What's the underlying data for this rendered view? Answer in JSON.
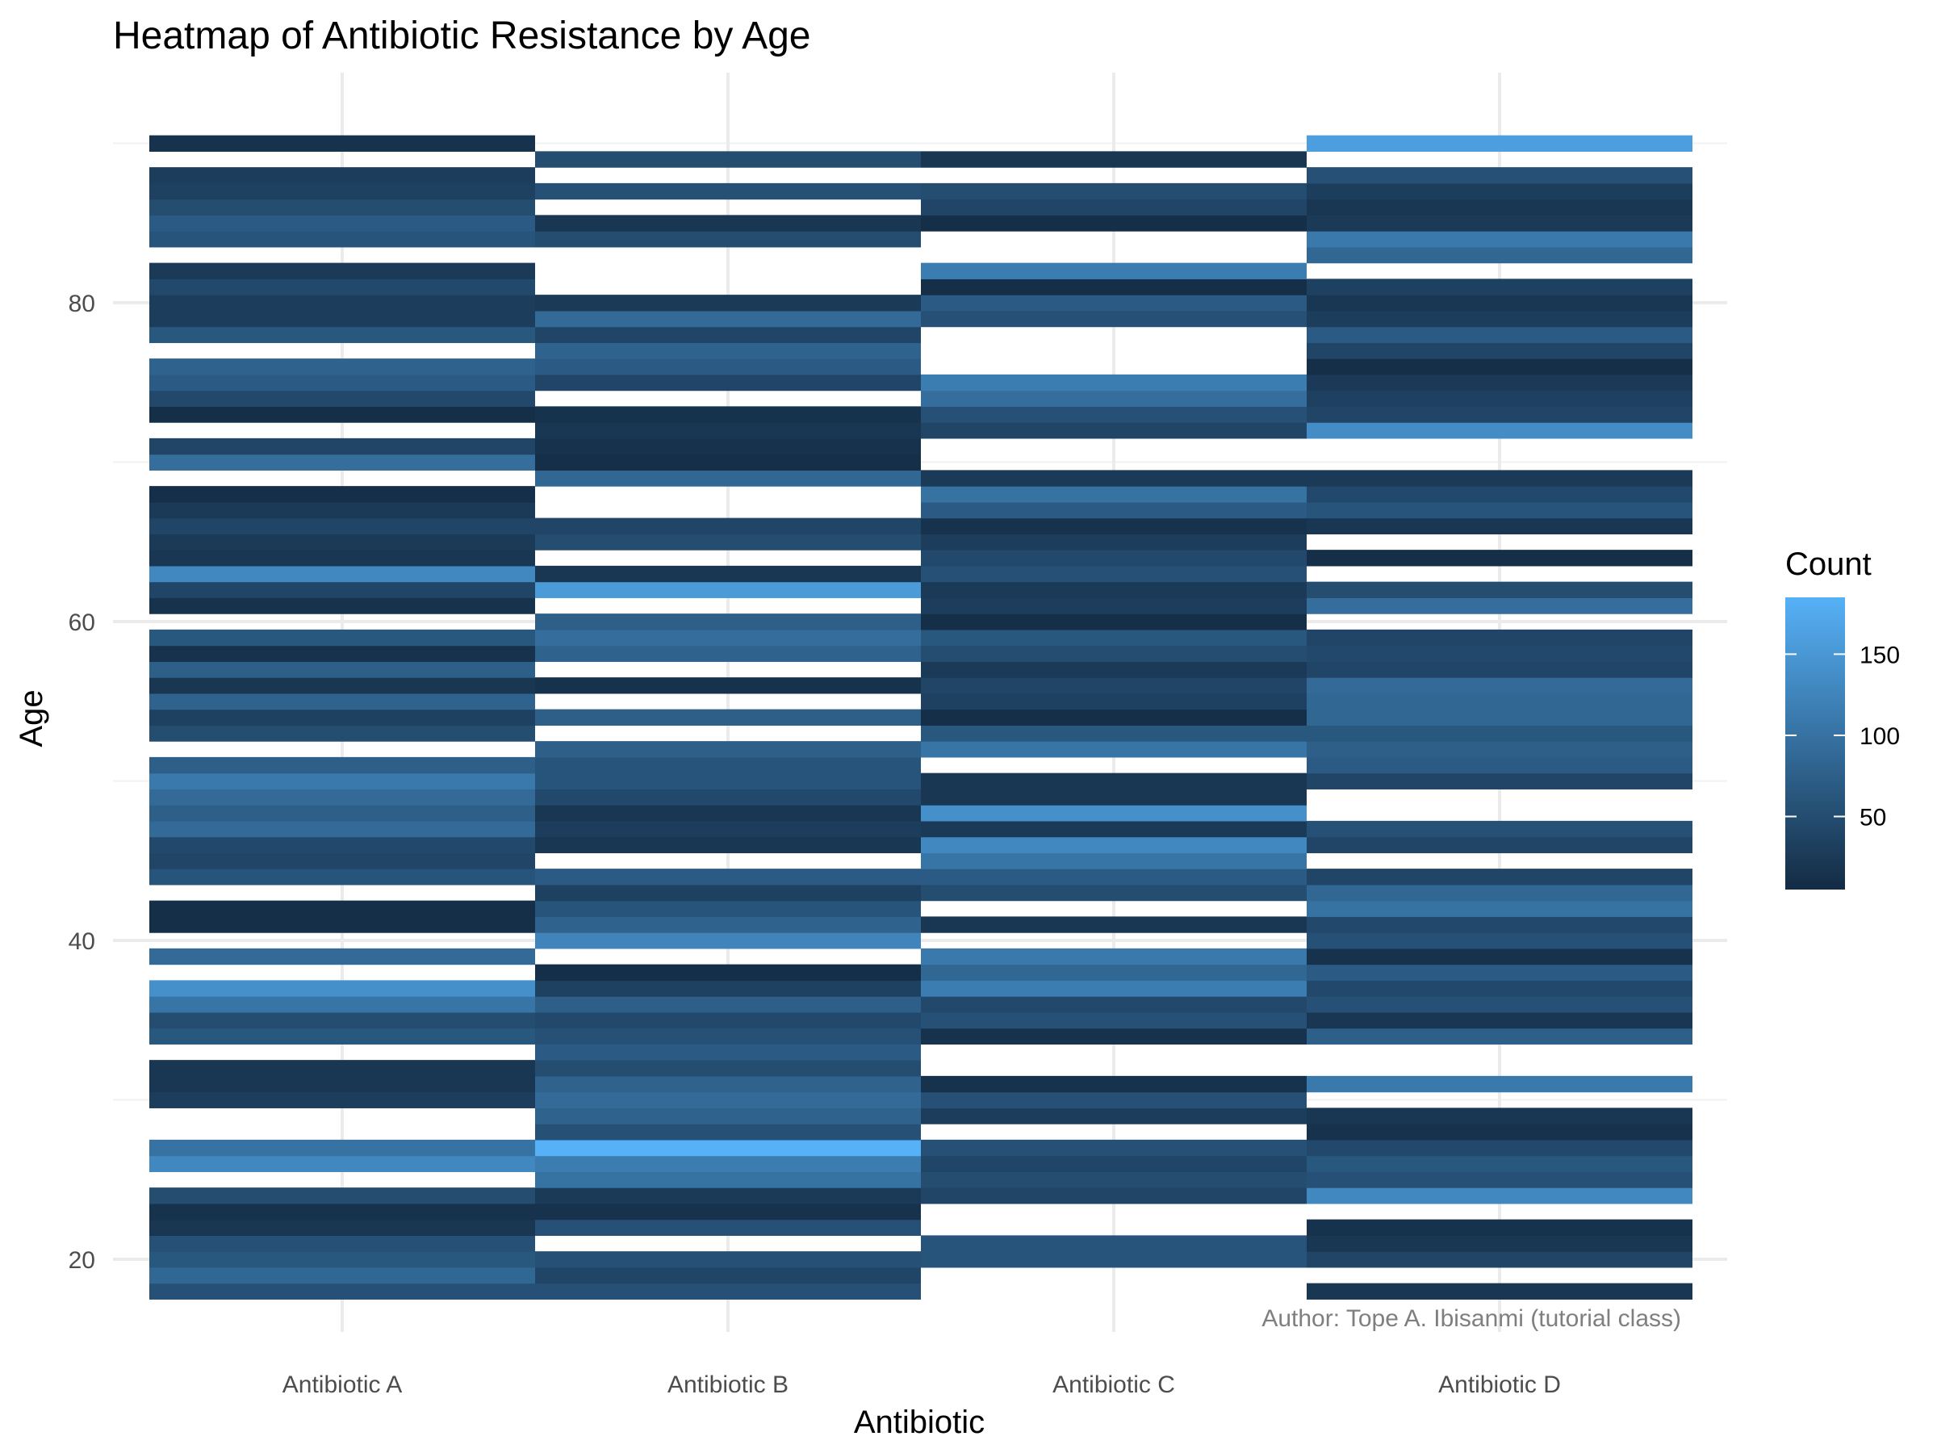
{
  "chart_data": {
    "type": "heatmap",
    "title": "Heatmap of Antibiotic Resistance by Age",
    "xlabel": "Antibiotic",
    "ylabel": "Age",
    "caption": "Author: Tope A. Ibisanmi (tutorial class)",
    "categories": [
      "Antibiotic A",
      "Antibiotic B",
      "Antibiotic C",
      "Antibiotic D"
    ],
    "ylim": [
      14,
      92
    ],
    "y_ticks": [
      20,
      40,
      60,
      80
    ],
    "grid": true,
    "legend": {
      "title": "Count",
      "position": "right",
      "min": 5,
      "max": 185,
      "ticks": [
        50,
        100,
        150
      ],
      "low_color": "#132B43",
      "high_color": "#56B1F7"
    },
    "series": [
      {
        "category": "Antibiotic A",
        "cells": [
          [
            18,
            55
          ],
          [
            19,
            85
          ],
          [
            20,
            65
          ],
          [
            21,
            55
          ],
          [
            22,
            20
          ],
          [
            23,
            15
          ],
          [
            24,
            50
          ],
          [
            26,
            130
          ],
          [
            27,
            100
          ],
          [
            30,
            30
          ],
          [
            31,
            20
          ],
          [
            32,
            20
          ],
          [
            34,
            65
          ],
          [
            35,
            50
          ],
          [
            36,
            105
          ],
          [
            37,
            140
          ],
          [
            39,
            90
          ],
          [
            41,
            10
          ],
          [
            42,
            10
          ],
          [
            44,
            60
          ],
          [
            45,
            40
          ],
          [
            46,
            45
          ],
          [
            47,
            90
          ],
          [
            48,
            75
          ],
          [
            49,
            90
          ],
          [
            50,
            110
          ],
          [
            51,
            75
          ],
          [
            53,
            50
          ],
          [
            54,
            35
          ],
          [
            55,
            80
          ],
          [
            56,
            20
          ],
          [
            57,
            75
          ],
          [
            58,
            15
          ],
          [
            59,
            65
          ],
          [
            61,
            15
          ],
          [
            62,
            40
          ],
          [
            63,
            130
          ],
          [
            64,
            20
          ],
          [
            65,
            25
          ],
          [
            66,
            40
          ],
          [
            67,
            25
          ],
          [
            68,
            10
          ],
          [
            70,
            95
          ],
          [
            71,
            40
          ],
          [
            73,
            10
          ],
          [
            74,
            45
          ],
          [
            75,
            70
          ],
          [
            76,
            80
          ],
          [
            78,
            65
          ],
          [
            79,
            30
          ],
          [
            80,
            30
          ],
          [
            81,
            45
          ],
          [
            82,
            25
          ],
          [
            84,
            60
          ],
          [
            85,
            70
          ],
          [
            86,
            50
          ],
          [
            87,
            35
          ],
          [
            88,
            30
          ],
          [
            90,
            15
          ]
        ]
      },
      {
        "category": "Antibiotic B",
        "cells": [
          [
            18,
            55
          ],
          [
            19,
            40
          ],
          [
            20,
            55
          ],
          [
            22,
            55
          ],
          [
            23,
            15
          ],
          [
            24,
            25
          ],
          [
            25,
            100
          ],
          [
            26,
            115
          ],
          [
            27,
            185
          ],
          [
            28,
            55
          ],
          [
            29,
            80
          ],
          [
            30,
            90
          ],
          [
            31,
            80
          ],
          [
            32,
            50
          ],
          [
            33,
            70
          ],
          [
            34,
            55
          ],
          [
            35,
            45
          ],
          [
            36,
            75
          ],
          [
            37,
            35
          ],
          [
            38,
            10
          ],
          [
            40,
            125
          ],
          [
            41,
            80
          ],
          [
            42,
            60
          ],
          [
            43,
            35
          ],
          [
            44,
            70
          ],
          [
            46,
            20
          ],
          [
            47,
            30
          ],
          [
            48,
            20
          ],
          [
            49,
            45
          ],
          [
            50,
            60
          ],
          [
            51,
            60
          ],
          [
            52,
            75
          ],
          [
            54,
            75
          ],
          [
            56,
            15
          ],
          [
            58,
            80
          ],
          [
            59,
            95
          ],
          [
            60,
            75
          ],
          [
            62,
            155
          ],
          [
            63,
            20
          ],
          [
            65,
            50
          ],
          [
            66,
            40
          ],
          [
            69,
            85
          ],
          [
            70,
            10
          ],
          [
            71,
            15
          ],
          [
            72,
            20
          ],
          [
            73,
            15
          ],
          [
            75,
            40
          ],
          [
            76,
            70
          ],
          [
            77,
            80
          ],
          [
            78,
            40
          ],
          [
            79,
            90
          ],
          [
            80,
            25
          ],
          [
            84,
            50
          ],
          [
            85,
            20
          ],
          [
            87,
            55
          ],
          [
            89,
            50
          ]
        ]
      },
      {
        "category": "Antibiotic C",
        "cells": [
          [
            20,
            60
          ],
          [
            21,
            60
          ],
          [
            24,
            40
          ],
          [
            25,
            50
          ],
          [
            26,
            40
          ],
          [
            27,
            55
          ],
          [
            29,
            30
          ],
          [
            30,
            55
          ],
          [
            31,
            15
          ],
          [
            34,
            15
          ],
          [
            35,
            55
          ],
          [
            36,
            45
          ],
          [
            37,
            115
          ],
          [
            38,
            85
          ],
          [
            39,
            110
          ],
          [
            41,
            20
          ],
          [
            43,
            50
          ],
          [
            44,
            70
          ],
          [
            45,
            105
          ],
          [
            46,
            130
          ],
          [
            47,
            25
          ],
          [
            48,
            140
          ],
          [
            49,
            20
          ],
          [
            50,
            20
          ],
          [
            52,
            105
          ],
          [
            53,
            65
          ],
          [
            54,
            10
          ],
          [
            55,
            35
          ],
          [
            56,
            40
          ],
          [
            57,
            25
          ],
          [
            58,
            50
          ],
          [
            59,
            65
          ],
          [
            60,
            10
          ],
          [
            61,
            30
          ],
          [
            62,
            25
          ],
          [
            63,
            55
          ],
          [
            64,
            45
          ],
          [
            65,
            30
          ],
          [
            66,
            15
          ],
          [
            67,
            70
          ],
          [
            68,
            100
          ],
          [
            69,
            25
          ],
          [
            72,
            40
          ],
          [
            73,
            55
          ],
          [
            74,
            95
          ],
          [
            75,
            115
          ],
          [
            79,
            55
          ],
          [
            80,
            70
          ],
          [
            81,
            10
          ],
          [
            82,
            115
          ],
          [
            85,
            10
          ],
          [
            86,
            40
          ],
          [
            87,
            50
          ],
          [
            89,
            20
          ]
        ]
      },
      {
        "category": "Antibiotic D",
        "cells": [
          [
            18,
            20
          ],
          [
            20,
            40
          ],
          [
            21,
            20
          ],
          [
            22,
            15
          ],
          [
            24,
            130
          ],
          [
            25,
            55
          ],
          [
            26,
            65
          ],
          [
            27,
            45
          ],
          [
            28,
            15
          ],
          [
            29,
            20
          ],
          [
            31,
            110
          ],
          [
            34,
            75
          ],
          [
            35,
            20
          ],
          [
            36,
            55
          ],
          [
            37,
            45
          ],
          [
            38,
            70
          ],
          [
            39,
            15
          ],
          [
            40,
            55
          ],
          [
            41,
            45
          ],
          [
            42,
            100
          ],
          [
            43,
            85
          ],
          [
            44,
            40
          ],
          [
            46,
            40
          ],
          [
            47,
            55
          ],
          [
            50,
            40
          ],
          [
            51,
            70
          ],
          [
            52,
            75
          ],
          [
            53,
            65
          ],
          [
            54,
            85
          ],
          [
            55,
            85
          ],
          [
            56,
            90
          ],
          [
            57,
            40
          ],
          [
            58,
            45
          ],
          [
            59,
            40
          ],
          [
            61,
            95
          ],
          [
            62,
            50
          ],
          [
            64,
            10
          ],
          [
            66,
            20
          ],
          [
            67,
            60
          ],
          [
            68,
            45
          ],
          [
            69,
            25
          ],
          [
            72,
            135
          ],
          [
            73,
            40
          ],
          [
            74,
            35
          ],
          [
            75,
            25
          ],
          [
            76,
            10
          ],
          [
            77,
            40
          ],
          [
            78,
            70
          ],
          [
            79,
            30
          ],
          [
            80,
            20
          ],
          [
            81,
            35
          ],
          [
            83,
            85
          ],
          [
            84,
            110
          ],
          [
            85,
            25
          ],
          [
            86,
            20
          ],
          [
            87,
            30
          ],
          [
            88,
            55
          ],
          [
            90,
            160
          ]
        ]
      }
    ]
  }
}
